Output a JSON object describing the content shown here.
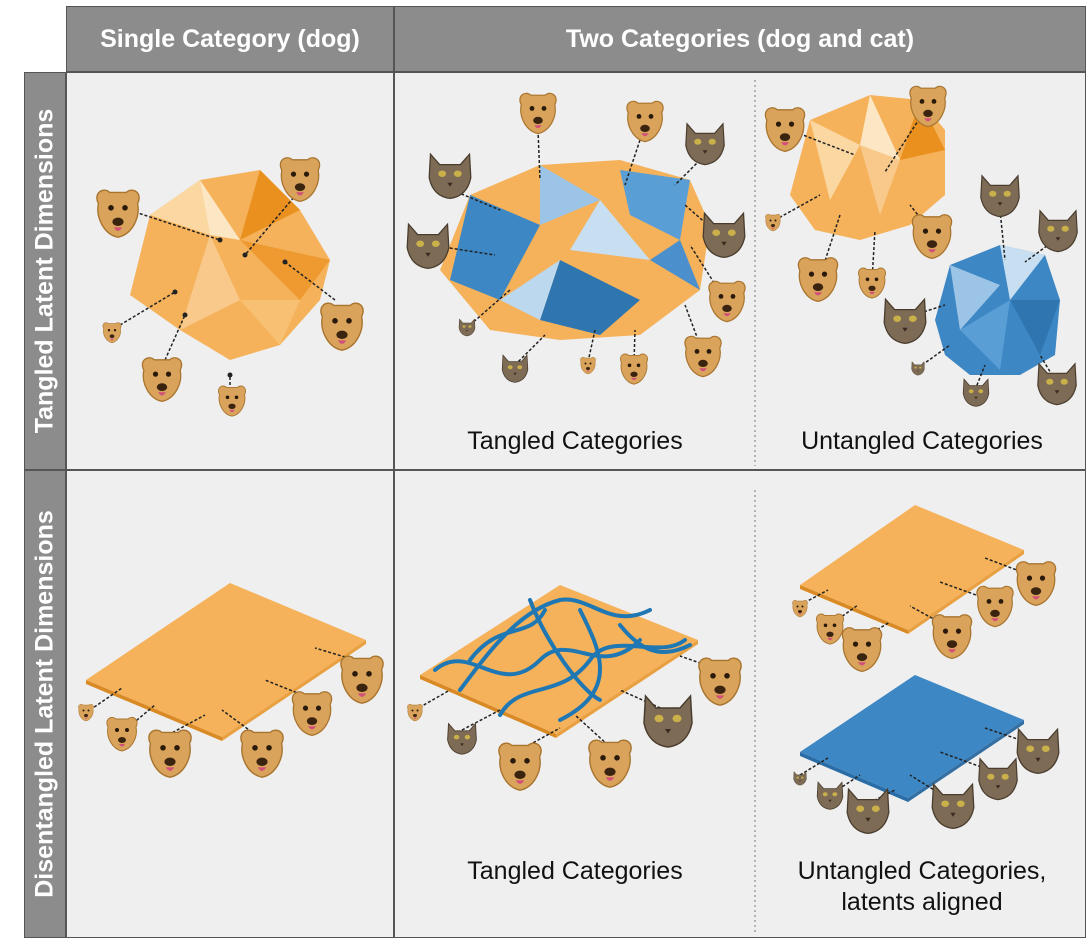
{
  "columns": {
    "single": "Single Category (dog)",
    "two": "Two Categories (dog and cat)"
  },
  "rows": {
    "tangled": "Tangled Latent Dimensions",
    "disentangled": "Disentangled Latent Dimensions"
  },
  "captions": {
    "top_tangled": "Tangled Categories",
    "top_untangled": "Untangled Categories",
    "bottom_tangled": "Tangled Categories",
    "bottom_untangled_line1": "Untangled Categories,",
    "bottom_untangled_line2": "latents aligned"
  },
  "colors": {
    "header_bg": "#8c8c8c",
    "cell_bg": "#efefef",
    "dog_manifold": "#f5b25a",
    "cat_manifold": "#3d87c4",
    "dog_face": "#d9a35c",
    "cat_face": "#7d6b55"
  },
  "icons": [
    "dog-face-icon",
    "cat-face-icon",
    "crumpled-manifold-icon",
    "flat-manifold-icon"
  ]
}
